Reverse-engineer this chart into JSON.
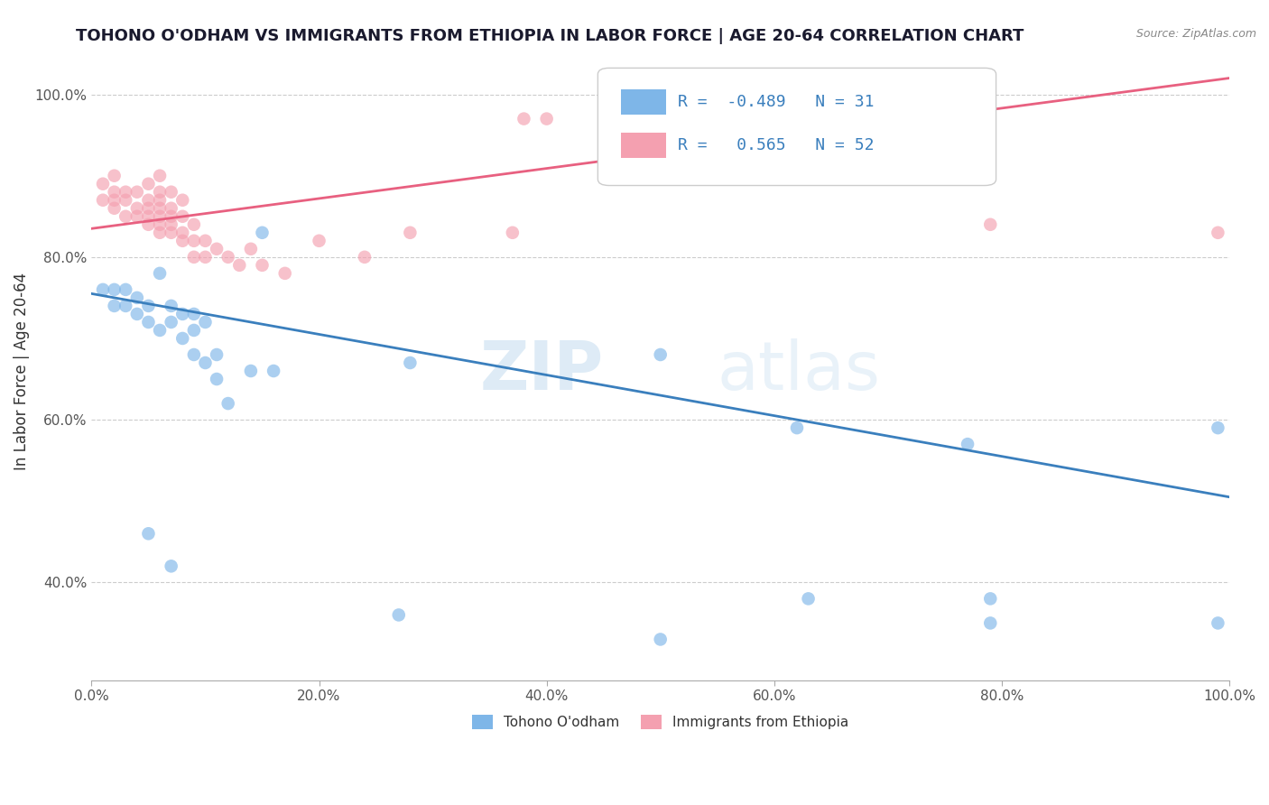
{
  "title": "TOHONO O'ODHAM VS IMMIGRANTS FROM ETHIOPIA IN LABOR FORCE | AGE 20-64 CORRELATION CHART",
  "source": "Source: ZipAtlas.com",
  "xlabel": "",
  "ylabel": "In Labor Force | Age 20-64",
  "xlim": [
    0.0,
    1.0
  ],
  "ylim": [
    0.28,
    1.04
  ],
  "xticks": [
    0.0,
    0.2,
    0.4,
    0.6,
    0.8,
    1.0
  ],
  "yticks": [
    0.4,
    0.6,
    0.8,
    1.0
  ],
  "xtick_labels": [
    "0.0%",
    "20.0%",
    "40.0%",
    "60.0%",
    "80.0%",
    "100.0%"
  ],
  "ytick_labels": [
    "40.0%",
    "60.0%",
    "80.0%",
    "100.0%"
  ],
  "blue_R": -0.489,
  "blue_N": 31,
  "pink_R": 0.565,
  "pink_N": 52,
  "blue_label": "Tohono O'odham",
  "pink_label": "Immigrants from Ethiopia",
  "blue_color": "#7EB6E8",
  "pink_color": "#F4A0B0",
  "blue_line_color": "#3A7FBD",
  "pink_line_color": "#E86080",
  "watermark_zip": "ZIP",
  "watermark_atlas": "atlas",
  "background_color": "#FFFFFF",
  "blue_scatter_x": [
    0.01,
    0.02,
    0.02,
    0.03,
    0.03,
    0.04,
    0.04,
    0.05,
    0.05,
    0.06,
    0.06,
    0.07,
    0.07,
    0.08,
    0.08,
    0.09,
    0.09,
    0.09,
    0.1,
    0.1,
    0.11,
    0.11,
    0.12,
    0.14,
    0.15,
    0.16,
    0.28,
    0.5,
    0.62,
    0.77,
    0.99
  ],
  "blue_scatter_y": [
    0.76,
    0.74,
    0.76,
    0.74,
    0.76,
    0.73,
    0.75,
    0.72,
    0.74,
    0.71,
    0.78,
    0.72,
    0.74,
    0.7,
    0.73,
    0.68,
    0.71,
    0.73,
    0.67,
    0.72,
    0.65,
    0.68,
    0.62,
    0.66,
    0.83,
    0.66,
    0.67,
    0.68,
    0.59,
    0.57,
    0.59
  ],
  "blue_low_x": [
    0.05,
    0.07,
    0.27,
    0.5,
    0.63,
    0.79,
    0.79,
    0.99
  ],
  "blue_low_y": [
    0.46,
    0.42,
    0.36,
    0.33,
    0.38,
    0.35,
    0.38,
    0.35
  ],
  "pink_scatter_x": [
    0.01,
    0.01,
    0.02,
    0.02,
    0.02,
    0.02,
    0.03,
    0.03,
    0.03,
    0.04,
    0.04,
    0.04,
    0.05,
    0.05,
    0.05,
    0.05,
    0.05,
    0.06,
    0.06,
    0.06,
    0.06,
    0.06,
    0.06,
    0.06,
    0.07,
    0.07,
    0.07,
    0.07,
    0.07,
    0.08,
    0.08,
    0.08,
    0.08,
    0.09,
    0.09,
    0.09,
    0.1,
    0.1,
    0.11,
    0.12,
    0.13,
    0.14,
    0.15,
    0.17,
    0.2,
    0.24,
    0.28,
    0.37,
    0.38,
    0.4,
    0.79,
    0.99
  ],
  "pink_scatter_y": [
    0.87,
    0.89,
    0.86,
    0.87,
    0.88,
    0.9,
    0.85,
    0.87,
    0.88,
    0.85,
    0.86,
    0.88,
    0.84,
    0.85,
    0.86,
    0.87,
    0.89,
    0.83,
    0.84,
    0.85,
    0.86,
    0.87,
    0.88,
    0.9,
    0.83,
    0.84,
    0.85,
    0.86,
    0.88,
    0.82,
    0.83,
    0.85,
    0.87,
    0.8,
    0.82,
    0.84,
    0.8,
    0.82,
    0.81,
    0.8,
    0.79,
    0.81,
    0.79,
    0.78,
    0.82,
    0.8,
    0.83,
    0.83,
    0.97,
    0.97,
    0.84,
    0.83
  ],
  "blue_line_x0": 0.0,
  "blue_line_y0": 0.755,
  "blue_line_x1": 1.0,
  "blue_line_y1": 0.505,
  "pink_line_x0": 0.0,
  "pink_line_y0": 0.835,
  "pink_line_x1": 1.0,
  "pink_line_y1": 1.02,
  "title_fontsize": 13,
  "axis_label_fontsize": 12,
  "tick_fontsize": 11,
  "legend_fontsize": 14
}
